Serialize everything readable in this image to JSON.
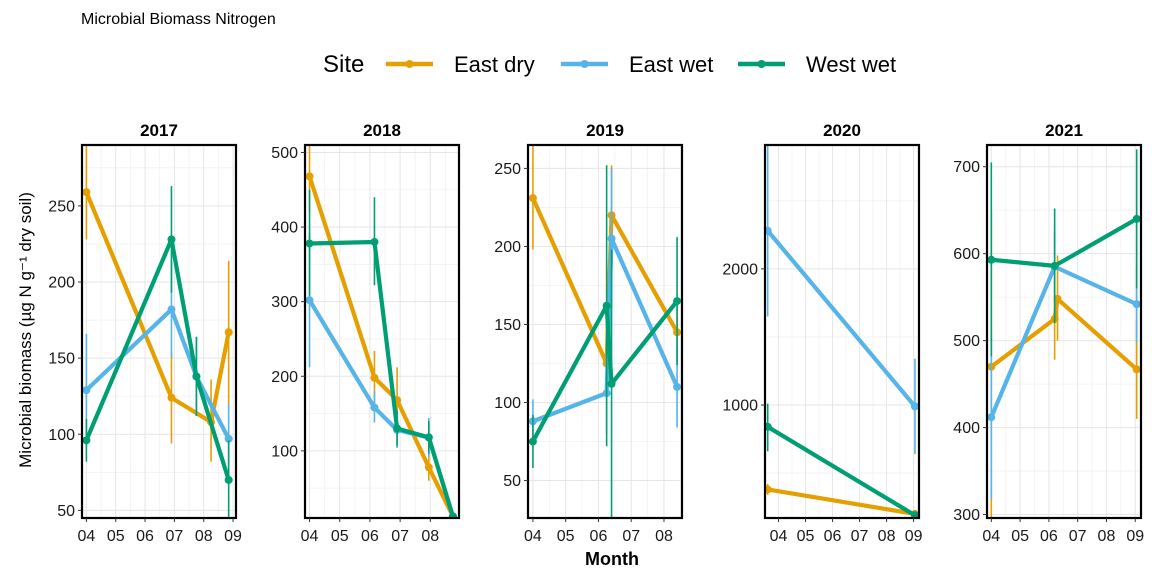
{
  "chart_data": {
    "type": "line",
    "title": "Microbial Biomass Nitrogen",
    "xlabel": "Month",
    "ylabel": "Microbial biomass (µg N g⁻¹ dry soil)",
    "legend": {
      "title": "Site",
      "position": "top",
      "entries": [
        {
          "name": "East dry",
          "color": "#E69F00"
        },
        {
          "name": "East wet",
          "color": "#56B4E9"
        },
        {
          "name": "West wet",
          "color": "#009E73"
        }
      ]
    },
    "x_tick_labels": [
      "04",
      "05",
      "06",
      "07",
      "08",
      "09"
    ],
    "panels": [
      {
        "year": "2017",
        "xlim": [
          3.85,
          9.1
        ],
        "ylim": [
          45,
          290
        ],
        "xticks": [
          4,
          5,
          6,
          7,
          8,
          9
        ],
        "yticks": [
          50,
          100,
          150,
          200,
          250
        ],
        "series": [
          {
            "name": "East dry",
            "x": [
              4.0,
              6.9,
              8.25,
              8.85
            ],
            "y": [
              259,
              124,
              108,
              167
            ],
            "lo": [
              228,
              94,
              82,
              118
            ],
            "hi": [
              290,
              154,
              136,
              214
            ]
          },
          {
            "name": "East wet",
            "x": [
              4.0,
              6.9,
              7.75,
              8.85
            ],
            "y": [
              129,
              182,
              138,
              97
            ],
            "lo": [
              92,
              150,
              112,
              78
            ],
            "hi": [
              166,
              214,
              164,
              120
            ]
          },
          {
            "name": "West wet",
            "x": [
              4.0,
              6.9,
              7.75,
              8.85
            ],
            "y": [
              96,
              228,
              138,
              70
            ],
            "lo": [
              82,
              193,
              112,
              45
            ],
            "hi": [
              110,
              263,
              164,
              96
            ]
          }
        ]
      },
      {
        "year": "2018",
        "xlim": [
          3.85,
          8.95
        ],
        "ylim": [
          10,
          510
        ],
        "xticks": [
          4,
          5,
          6,
          7,
          8
        ],
        "yticks": [
          100,
          200,
          300,
          400,
          500
        ],
        "series": [
          {
            "name": "East dry",
            "x": [
              4.0,
              6.15,
              6.9,
              7.95,
              8.75
            ],
            "y": [
              468,
              198,
              168,
              78,
              12
            ],
            "lo": [
              420,
              162,
              124,
              60,
              10
            ],
            "hi": [
              510,
              234,
              212,
              96,
              16
            ]
          },
          {
            "name": "East wet",
            "x": [
              4.0,
              6.15,
              6.9,
              7.95,
              8.75
            ],
            "y": [
              302,
              158,
              128,
              118,
              12
            ],
            "lo": [
              212,
              138,
              104,
              92,
              10
            ],
            "hi": [
              392,
              180,
              152,
              144,
              16
            ]
          },
          {
            "name": "West wet",
            "x": [
              4.0,
              6.15,
              6.9,
              7.95,
              8.75
            ],
            "y": [
              378,
              380,
              130,
              118,
              12
            ],
            "lo": [
              308,
              322,
              106,
              96,
              10
            ],
            "hi": [
              450,
              440,
              154,
              140,
              16
            ]
          }
        ]
      },
      {
        "year": "2019",
        "xlim": [
          3.85,
          8.55
        ],
        "ylim": [
          26,
          265
        ],
        "xticks": [
          4,
          5,
          6,
          7,
          8
        ],
        "yticks": [
          50,
          100,
          150,
          200,
          250
        ],
        "series": [
          {
            "name": "East dry",
            "x": [
              4.0,
              6.25,
              6.4,
              8.4
            ],
            "y": [
              231,
              125,
              220,
              145
            ],
            "lo": [
              198,
              112,
              190,
              126
            ],
            "hi": [
              265,
              138,
              252,
              164
            ]
          },
          {
            "name": "East wet",
            "x": [
              4.0,
              6.25,
              6.4,
              8.4
            ],
            "y": [
              88,
              106,
              205,
              110
            ],
            "lo": [
              74,
              80,
              160,
              84
            ],
            "hi": [
              102,
              132,
              250,
              136
            ]
          },
          {
            "name": "West wet",
            "x": [
              4.0,
              6.25,
              6.4,
              8.4
            ],
            "y": [
              75,
              162,
              112,
              165
            ],
            "lo": [
              58,
              72,
              26,
              124
            ],
            "hi": [
              92,
              252,
              198,
              206
            ]
          }
        ]
      },
      {
        "year": "2020",
        "xlim": [
          3.5,
          9.2
        ],
        "ylim": [
          170,
          2910
        ],
        "xticks": [
          4,
          5,
          6,
          7,
          8,
          9
        ],
        "yticks": [
          1000,
          2000
        ],
        "series": [
          {
            "name": "East dry",
            "x": [
              3.6,
              9.05
            ],
            "y": [
              380,
              200
            ],
            "lo": [
              340,
              180
            ],
            "hi": [
              420,
              220
            ]
          },
          {
            "name": "East wet",
            "x": [
              3.6,
              9.05
            ],
            "y": [
              2280,
              990
            ],
            "lo": [
              1650,
              640
            ],
            "hi": [
              2910,
              1340
            ]
          },
          {
            "name": "West wet",
            "x": [
              3.6,
              9.05
            ],
            "y": [
              840,
              190
            ],
            "lo": [
              660,
              170
            ],
            "hi": [
              1010,
              220
            ]
          }
        ]
      },
      {
        "year": "2021",
        "xlim": [
          3.85,
          9.2
        ],
        "ylim": [
          296,
          725
        ],
        "xticks": [
          4,
          5,
          6,
          7,
          8,
          9
        ],
        "yticks": [
          300,
          400,
          500,
          600,
          700
        ],
        "series": [
          {
            "name": "East dry",
            "x": [
              4.0,
              6.2,
              6.3,
              9.05
            ],
            "y": [
              470,
              525,
              548,
              467
            ],
            "lo": [
              296,
              478,
              500,
              410
            ],
            "hi": [
              648,
              572,
              598,
              524
            ]
          },
          {
            "name": "East wet",
            "x": [
              4.0,
              6.2,
              9.05
            ],
            "y": [
              412,
              585,
              542
            ],
            "lo": [
              318,
              545,
              498
            ],
            "hi": [
              508,
              626,
              586
            ]
          },
          {
            "name": "West wet",
            "x": [
              4.0,
              6.2,
              9.05
            ],
            "y": [
              593,
              586,
              640
            ],
            "lo": [
              482,
              520,
              560
            ],
            "hi": [
              705,
              652,
              720
            ]
          }
        ]
      }
    ]
  }
}
